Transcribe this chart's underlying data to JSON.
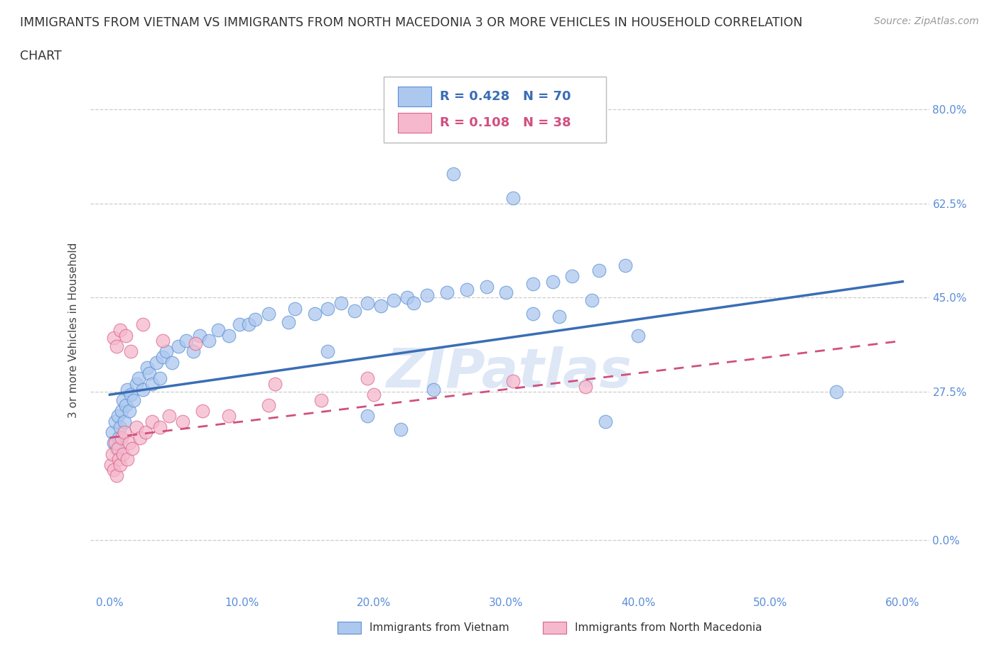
{
  "title_line1": "IMMIGRANTS FROM VIETNAM VS IMMIGRANTS FROM NORTH MACEDONIA 3 OR MORE VEHICLES IN HOUSEHOLD CORRELATION",
  "title_line2": "CHART",
  "source": "Source: ZipAtlas.com",
  "ylabel": "3 or more Vehicles in Household",
  "ytick_values": [
    0.0,
    27.5,
    45.0,
    62.5,
    80.0
  ],
  "xtick_values": [
    0.0,
    10.0,
    20.0,
    30.0,
    40.0,
    50.0,
    60.0
  ],
  "xlim": [
    -1.5,
    62
  ],
  "ylim": [
    -10,
    88
  ],
  "vietnam_R": 0.428,
  "vietnam_N": 70,
  "macedonia_R": 0.108,
  "macedonia_N": 38,
  "vietnam_color": "#adc8ee",
  "vietnam_edge_color": "#5a8fd4",
  "vietnam_line_color": "#3a6db5",
  "macedonia_color": "#f5b8cc",
  "macedonia_edge_color": "#d9658a",
  "macedonia_line_color": "#d05080",
  "watermark": "ZIPatlas",
  "background_color": "#ffffff",
  "vietnam_x": [
    0.2,
    0.3,
    0.4,
    0.5,
    0.6,
    0.7,
    0.8,
    0.9,
    1.0,
    1.1,
    1.2,
    1.3,
    1.5,
    1.6,
    1.8,
    2.0,
    2.2,
    2.5,
    2.8,
    3.0,
    3.2,
    3.5,
    3.8,
    4.0,
    4.3,
    4.7,
    5.2,
    5.8,
    6.3,
    6.8,
    7.5,
    8.2,
    9.0,
    9.8,
    10.5,
    11.0,
    12.0,
    13.5,
    14.0,
    15.5,
    16.5,
    17.5,
    18.5,
    19.5,
    20.5,
    21.5,
    22.5,
    23.0,
    24.0,
    25.5,
    27.0,
    28.5,
    30.0,
    32.0,
    33.5,
    35.0,
    37.0,
    39.0,
    26.0,
    30.5,
    32.0,
    34.0,
    36.5,
    19.5,
    22.0,
    40.0,
    37.5,
    24.5,
    55.0,
    16.5
  ],
  "vietnam_y": [
    20.0,
    18.0,
    22.0,
    17.0,
    23.0,
    19.0,
    21.0,
    24.0,
    26.0,
    22.0,
    25.0,
    28.0,
    24.0,
    27.0,
    26.0,
    29.0,
    30.0,
    28.0,
    32.0,
    31.0,
    29.0,
    33.0,
    30.0,
    34.0,
    35.0,
    33.0,
    36.0,
    37.0,
    35.0,
    38.0,
    37.0,
    39.0,
    38.0,
    40.0,
    40.0,
    41.0,
    42.0,
    40.5,
    43.0,
    42.0,
    43.0,
    44.0,
    42.5,
    44.0,
    43.5,
    44.5,
    45.0,
    44.0,
    45.5,
    46.0,
    46.5,
    47.0,
    46.0,
    47.5,
    48.0,
    49.0,
    50.0,
    51.0,
    68.0,
    63.5,
    42.0,
    41.5,
    44.5,
    23.0,
    20.5,
    38.0,
    22.0,
    28.0,
    27.5,
    35.0
  ],
  "macedonia_x": [
    0.1,
    0.2,
    0.3,
    0.4,
    0.5,
    0.6,
    0.7,
    0.8,
    0.9,
    1.0,
    1.1,
    1.3,
    1.5,
    1.7,
    2.0,
    2.3,
    2.7,
    3.2,
    3.8,
    4.5,
    5.5,
    7.0,
    9.0,
    12.0,
    16.0,
    20.0,
    0.3,
    0.5,
    0.8,
    1.2,
    1.6,
    2.5,
    4.0,
    6.5,
    12.5,
    19.5,
    30.5,
    36.0
  ],
  "macedonia_y": [
    14.0,
    16.0,
    13.0,
    18.0,
    12.0,
    17.0,
    15.0,
    14.0,
    19.0,
    16.0,
    20.0,
    15.0,
    18.0,
    17.0,
    21.0,
    19.0,
    20.0,
    22.0,
    21.0,
    23.0,
    22.0,
    24.0,
    23.0,
    25.0,
    26.0,
    27.0,
    37.5,
    36.0,
    39.0,
    38.0,
    35.0,
    40.0,
    37.0,
    36.5,
    29.0,
    30.0,
    29.5,
    28.5
  ],
  "viet_trend_x0": 0,
  "viet_trend_y0": 27.0,
  "viet_trend_x1": 60,
  "viet_trend_y1": 48.0,
  "mac_trend_x0": 0,
  "mac_trend_y0": 19.0,
  "mac_trend_x1": 60,
  "mac_trend_y1": 37.0
}
